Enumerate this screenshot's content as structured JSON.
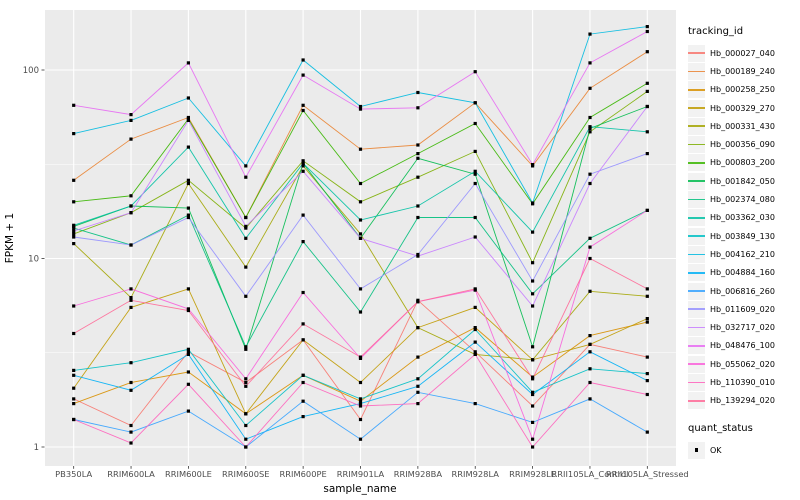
{
  "chart_data": {
    "type": "line",
    "title": "",
    "xlabel": "sample_name",
    "ylabel": "FPKM + 1",
    "y_scale": "log10",
    "y_ticks": [
      1,
      10,
      100
    ],
    "y_minor_breaks": [
      3.162,
      31.62
    ],
    "ylim": [
      0.72,
      210
    ],
    "grid": "on",
    "legend_position": "right",
    "legend_title": "tracking_id",
    "legend2_title": "quant_status",
    "quant_status": [
      "OK"
    ],
    "point_marker": "filled-square",
    "point_color": "#000000",
    "panel_bg": "#EBEBEB",
    "grid_color": "#FFFFFF",
    "axis_text_color": "#4D4D4D",
    "categories": [
      "PB350LA",
      "RRIM600LA",
      "RRIM600LE",
      "RRIM600SE",
      "RRIM600PE",
      "RRIM901LA",
      "RRIM928BA",
      "RRIM928LA",
      "RRIM928LE",
      "RRII105LA_Control",
      "RRII105LA_Stressed"
    ],
    "series": [
      {
        "name": "Hb_000027_040",
        "color": "#F8766D",
        "values": [
          1.8,
          1.3,
          3.2,
          2.2,
          3.7,
          1.4,
          6.0,
          3.2,
          1.65,
          3.5,
          3.0
        ]
      },
      {
        "name": "Hb_000189_240",
        "color": "#EA8331",
        "values": [
          26,
          43,
          56,
          16.5,
          65,
          38,
          40,
          67,
          31,
          80,
          125
        ]
      },
      {
        "name": "Hb_000258_250",
        "color": "#D89000",
        "values": [
          1.7,
          2.2,
          2.5,
          1.5,
          2.4,
          1.75,
          3.0,
          4.3,
          2.35,
          3.9,
          4.6
        ]
      },
      {
        "name": "Hb_000329_270",
        "color": "#C09B00",
        "values": [
          2.05,
          5.5,
          6.9,
          1.5,
          3.7,
          2.2,
          4.3,
          5.5,
          2.9,
          3.5,
          4.8
        ]
      },
      {
        "name": "Hb_000331_430",
        "color": "#A3A500",
        "values": [
          12,
          6.2,
          25,
          9.0,
          31,
          13.5,
          4.3,
          3.1,
          2.9,
          6.7,
          6.3
        ]
      },
      {
        "name": "Hb_000356_090",
        "color": "#7CAE00",
        "values": [
          13.5,
          17.5,
          26,
          14.5,
          33,
          20,
          27,
          37,
          9.5,
          47,
          77
        ]
      },
      {
        "name": "Hb_000803_200",
        "color": "#39B600",
        "values": [
          20,
          21.5,
          55,
          16.5,
          61,
          25,
          36,
          52,
          19.5,
          56,
          85
        ]
      },
      {
        "name": "Hb_001842_050",
        "color": "#00BB4E",
        "values": [
          14.8,
          19,
          18.5,
          3.3,
          32,
          12.8,
          34,
          28,
          3.4,
          49,
          64
        ]
      },
      {
        "name": "Hb_002374_080",
        "color": "#00BF7D",
        "values": [
          14.5,
          11.8,
          17,
          3.4,
          12.3,
          5.2,
          16.5,
          16.5,
          6.5,
          12.8,
          18
        ]
      },
      {
        "name": "Hb_003362_030",
        "color": "#00C1A3",
        "values": [
          15,
          19,
          39,
          12.8,
          32,
          16,
          19,
          29,
          13.8,
          50,
          47
        ]
      },
      {
        "name": "Hb_003849_130",
        "color": "#00BFC4",
        "values": [
          2.55,
          2.8,
          3.3,
          1.3,
          2.4,
          1.8,
          2.3,
          4.2,
          1.95,
          2.6,
          2.45
        ]
      },
      {
        "name": "Hb_004162_210",
        "color": "#00BAE0",
        "values": [
          46,
          54,
          71,
          31,
          113,
          64,
          76,
          67,
          19.7,
          155,
          170
        ]
      },
      {
        "name": "Hb_004884_160",
        "color": "#00B0F6",
        "values": [
          2.4,
          2.0,
          3.1,
          1.1,
          1.45,
          1.7,
          2.1,
          3.6,
          1.9,
          3.2,
          2.25
        ]
      },
      {
        "name": "Hb_006816_260",
        "color": "#35A2FF",
        "values": [
          1.4,
          1.2,
          1.55,
          1.0,
          1.75,
          1.1,
          1.95,
          1.7,
          1.35,
          1.8,
          1.2
        ]
      },
      {
        "name": "Hb_011609_020",
        "color": "#9590FF",
        "values": [
          13,
          11.8,
          16.5,
          6.3,
          17,
          6.9,
          10.5,
          25,
          7.6,
          28,
          36
        ]
      },
      {
        "name": "Hb_032717_020",
        "color": "#C77CFF",
        "values": [
          14,
          17.5,
          54,
          14.8,
          29,
          12.8,
          10.3,
          13,
          5.6,
          25,
          64
        ]
      },
      {
        "name": "Hb_048476_100",
        "color": "#E76BF3",
        "values": [
          65,
          58,
          109,
          27,
          94,
          62,
          63,
          98,
          31.5,
          109,
          160
        ]
      },
      {
        "name": "Hb_055062_020",
        "color": "#FA62DB",
        "values": [
          5.6,
          6.9,
          5.4,
          2.3,
          6.6,
          2.95,
          5.9,
          6.8,
          1.1,
          11.5,
          18
        ]
      },
      {
        "name": "Hb_110390_010",
        "color": "#FF62BC",
        "values": [
          1.4,
          1.05,
          2.15,
          1.0,
          2.2,
          1.65,
          1.7,
          3.1,
          1.0,
          2.2,
          1.9
        ]
      },
      {
        "name": "Hb_139294_020",
        "color": "#FF6A98",
        "values": [
          4.0,
          6.0,
          5.3,
          2.1,
          4.5,
          3.0,
          5.9,
          6.9,
          2.3,
          10,
          6.9
        ]
      }
    ]
  }
}
